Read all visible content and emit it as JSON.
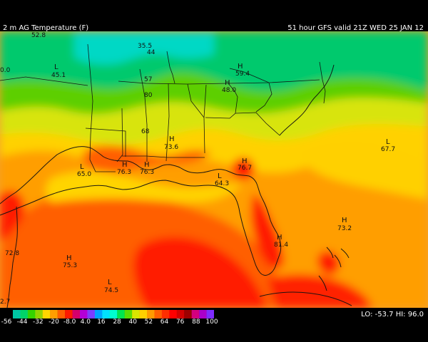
{
  "header": {
    "left_title": "2 m AG Temperature (F)",
    "right_title": "51 hour GFS valid 21Z WED 25 JAN 12"
  },
  "labels": {
    "top_left": "52.8",
    "upper_left": "0.0",
    "north": "35.5",
    "north2": "44",
    "l1_marker": "L",
    "l1_value": "45.1",
    "h1_marker": "H",
    "h1_value": "59.4",
    "h2_marker": "H",
    "h2_value": "48.0",
    "mid1": "57",
    "mid2": "80",
    "mid3": "68",
    "h3_marker": "H",
    "h3_value": "73.6",
    "east_l_marker": "L",
    "east_l_value": "67.7",
    "tx_l_marker": "L",
    "tx_l_value": "65.0",
    "gulf_l_marker": "L",
    "gulf_l_value": "64.3",
    "h4_marker": "H",
    "h4_value": "76.3",
    "h5_marker": "H",
    "h5_value": "76.3",
    "fl_h_marker": "H",
    "fl_h_value": "76.7",
    "west_value": "72.8",
    "mx_h_marker": "H",
    "mx_h_value": "75.3",
    "sfl_h_marker": "H",
    "sfl_h_value": "81.4",
    "bah_h_marker": "H",
    "bah_h_value": "73.2",
    "gulf_south_marker": "L",
    "gulf_south_value": "74.5",
    "bottom_left": "2.7"
  },
  "legend": {
    "ticks": [
      "-56",
      "-44",
      "-32",
      "-20",
      "-8.0",
      "4.0",
      "16",
      "28",
      "40",
      "52",
      "64",
      "76",
      "88",
      "100"
    ],
    "colors": [
      "#00c7a4",
      "#00d468",
      "#35d300",
      "#94d300",
      "#ffd600",
      "#ff9e00",
      "#ff5f00",
      "#ff1a00",
      "#d5006a",
      "#b400d6",
      "#7d3dff",
      "#00a3ff",
      "#00e1ff",
      "#00ffd0",
      "#00e64f",
      "#5bdc00",
      "#d9e500",
      "#ffd000",
      "#ff9b00",
      "#ff5f00",
      "#ff2e00",
      "#ff0000",
      "#d40000",
      "#9d0000",
      "#d5007e",
      "#ac00ca",
      "#7f2cff"
    ],
    "lo_label": "LO:",
    "lo_value": "-53.7",
    "hi_label": "HI:",
    "hi_value": "96.0"
  }
}
